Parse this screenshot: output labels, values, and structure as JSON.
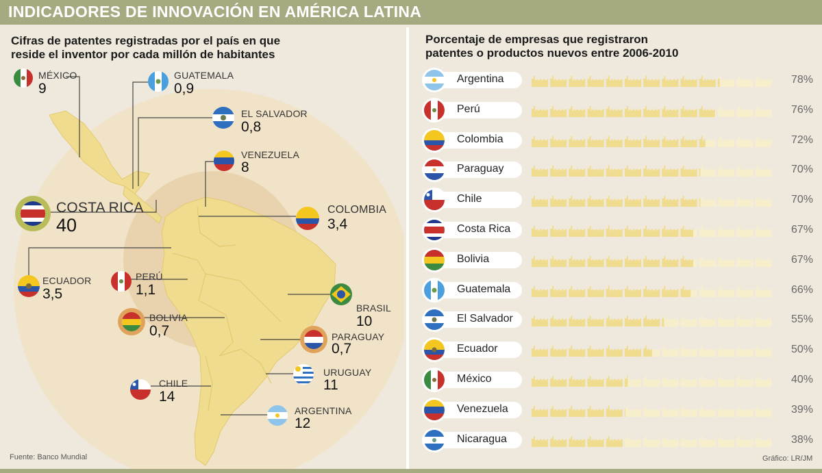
{
  "title": "INDICADORES DE INNOVACIÓN EN AMÉRICA LATINA",
  "left_subtitle": [
    "Cifras de patentes registradas por el país en que",
    "reside el inventor por cada millón de habitantes"
  ],
  "right_subtitle": [
    "Porcentaje de empresas que registraron",
    "patentes o productos nuevos entre 2006-2010"
  ],
  "source": "Fuente: Banco Mundial",
  "credit": "Gráfico: LR/JM",
  "colors": {
    "accent": "#a7a980",
    "map_land": "#f0dc8e",
    "circle_outer": "#f1e3c8",
    "circle_inner": "#e9d3ae",
    "bar_filled": "#f0dc8e",
    "bar_empty": "#f7efcb"
  },
  "chart_data": [
    {
      "type": "map",
      "title": "Cifras de patentes registradas por el país en que reside el inventor por cada millón de habitantes",
      "countries": [
        {
          "name": "MÉXICO",
          "value": "9",
          "flag": "mexico-flag"
        },
        {
          "name": "GUATEMALA",
          "value": "0,9",
          "flag": "guatemala-flag"
        },
        {
          "name": "EL SALVADOR",
          "value": "0,8",
          "flag": "el-salvador-flag"
        },
        {
          "name": "VENEZUELA",
          "value": "8",
          "flag": "venezuela-flag"
        },
        {
          "name": "COSTA RICA",
          "value": "40",
          "flag": "costa-rica-flag"
        },
        {
          "name": "COLOMBIA",
          "value": "3,4",
          "flag": "colombia-flag"
        },
        {
          "name": "ECUADOR",
          "value": "3,5",
          "flag": "ecuador-flag"
        },
        {
          "name": "PERÚ",
          "value": "1,1",
          "flag": "peru-flag"
        },
        {
          "name": "BRASIL",
          "value": "10",
          "flag": "brazil-flag"
        },
        {
          "name": "BOLIVIA",
          "value": "0,7",
          "flag": "bolivia-flag"
        },
        {
          "name": "PARAGUAY",
          "value": "0,7",
          "flag": "paraguay-flag"
        },
        {
          "name": "URUGUAY",
          "value": "11",
          "flag": "uruguay-flag"
        },
        {
          "name": "CHILE",
          "value": "14",
          "flag": "chile-flag"
        },
        {
          "name": "ARGENTINA",
          "value": "12",
          "flag": "argentina-flag"
        }
      ]
    },
    {
      "type": "bar",
      "title": "Porcentaje de empresas que registraron patentes o productos nuevos entre 2006-2010",
      "units": 13,
      "categories": [
        "Argentina",
        "Perú",
        "Colombia",
        "Paraguay",
        "Chile",
        "Costa Rica",
        "Bolivia",
        "Guatemala",
        "El Salvador",
        "Ecuador",
        "México",
        "Venezuela",
        "Nicaragua"
      ],
      "values": [
        78,
        76,
        72,
        70,
        70,
        67,
        67,
        66,
        55,
        50,
        40,
        39,
        38
      ],
      "labels": [
        "78%",
        "76%",
        "72%",
        "70%",
        "70%",
        "67%",
        "67%",
        "66%",
        "55%",
        "50%",
        "40%",
        "39%",
        "38%"
      ],
      "flags": [
        "argentina-flag",
        "peru-flag",
        "colombia-flag",
        "paraguay-flag",
        "chile-flag",
        "costa-rica-flag",
        "bolivia-flag",
        "guatemala-flag",
        "el-salvador-flag",
        "ecuador-flag",
        "mexico-flag",
        "venezuela-flag",
        "nicaragua-flag"
      ],
      "ylim": [
        0,
        100
      ]
    }
  ]
}
